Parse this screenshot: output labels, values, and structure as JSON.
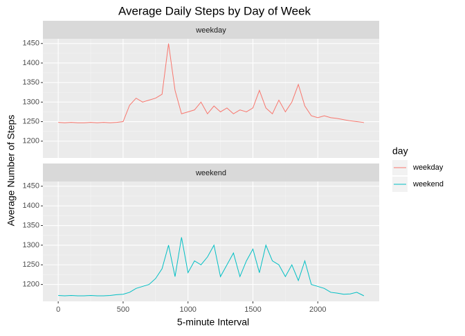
{
  "chart_data": {
    "type": "line",
    "title": "Average Daily Steps by Day of Week",
    "x_label": "5-minute Interval",
    "y_label": "Average Number of Steps",
    "legend_title": "day",
    "x": [
      0,
      50,
      100,
      150,
      200,
      250,
      300,
      350,
      400,
      450,
      500,
      550,
      600,
      650,
      700,
      750,
      800,
      850,
      900,
      950,
      1000,
      1050,
      1100,
      1150,
      1200,
      1250,
      1300,
      1350,
      1400,
      1450,
      1500,
      1550,
      1600,
      1650,
      1700,
      1750,
      1800,
      1850,
      1900,
      1950,
      2000,
      2050,
      2100,
      2150,
      2200,
      2250,
      2300,
      2350,
      2355
    ],
    "series": [
      {
        "name": "weekday",
        "color": "#F8766D",
        "values": [
          1248,
          1247,
          1248,
          1247,
          1247,
          1248,
          1247,
          1248,
          1247,
          1248,
          1250,
          1292,
          1310,
          1300,
          1305,
          1310,
          1320,
          1450,
          1330,
          1270,
          1275,
          1280,
          1300,
          1270,
          1290,
          1275,
          1285,
          1270,
          1280,
          1275,
          1285,
          1330,
          1285,
          1270,
          1305,
          1275,
          1300,
          1345,
          1290,
          1265,
          1260,
          1265,
          1260,
          1258,
          1255,
          1252,
          1250,
          1248,
          1247
        ]
      },
      {
        "name": "weekend",
        "color": "#00BFC4",
        "values": [
          1172,
          1171,
          1172,
          1171,
          1171,
          1172,
          1171,
          1171,
          1172,
          1174,
          1175,
          1180,
          1190,
          1195,
          1200,
          1215,
          1240,
          1300,
          1220,
          1320,
          1230,
          1260,
          1250,
          1270,
          1300,
          1220,
          1250,
          1280,
          1220,
          1260,
          1290,
          1230,
          1300,
          1260,
          1250,
          1220,
          1250,
          1210,
          1260,
          1200,
          1195,
          1190,
          1180,
          1178,
          1175,
          1176,
          1180,
          1172,
          1171
        ]
      }
    ],
    "xlim": [
      -118,
      2473
    ],
    "xticks": [
      0,
      500,
      1000,
      1500,
      2000
    ],
    "ylim": [
      1157,
      1462
    ],
    "yticks": [
      1200,
      1250,
      1300,
      1350,
      1400,
      1450
    ],
    "grid": true,
    "legend": "right"
  }
}
